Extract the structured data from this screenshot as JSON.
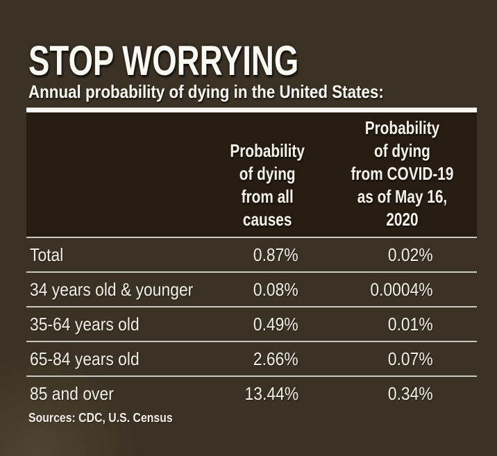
{
  "header": {
    "title": "STOP WORRYING",
    "subtitle": "Annual probability of dying in the United States:"
  },
  "table": {
    "col_all_causes_header": "Probability\nof dying\nfrom all\ncauses",
    "col_covid_header": "Probability\nof dying\nfrom COVID-19\nas of May 16,\n2020",
    "rows": [
      {
        "label": "Total",
        "all_causes": "0.87%",
        "covid": "0.02%"
      },
      {
        "label": "34 years old & younger",
        "all_causes": "0.08%",
        "covid": "0.0004%"
      },
      {
        "label": "35-64 years old",
        "all_causes": "0.49%",
        "covid": "0.01%"
      },
      {
        "label": "65-84 years old",
        "all_causes": "2.66%",
        "covid": "0.07%"
      },
      {
        "label": "85 and over",
        "all_causes": "13.44%",
        "covid": "0.34%"
      }
    ]
  },
  "footer": {
    "sources": "Sources: CDC, U.S. Census"
  },
  "colors": {
    "background": "#3a3224",
    "header_background": "#261d12",
    "text": "#f4f0e7",
    "divider": "#ccc9c0",
    "top_bar": "#f8f7f2"
  },
  "chart_data": {
    "type": "table",
    "title": "STOP WORRYING",
    "subtitle": "Annual probability of dying in the United States:",
    "columns": [
      "",
      "Probability of dying from all causes",
      "Probability of dying from COVID-19 as of May 16, 2020"
    ],
    "rows": [
      [
        "Total",
        "0.87%",
        "0.02%"
      ],
      [
        "34 years old & younger",
        "0.08%",
        "0.0004%"
      ],
      [
        "35-64 years old",
        "0.49%",
        "0.01%"
      ],
      [
        "65-84 years old",
        "2.66%",
        "0.07%"
      ],
      [
        "85 and over",
        "13.44%",
        "0.34%"
      ]
    ],
    "source_note": "Sources: CDC, U.S. Census"
  }
}
